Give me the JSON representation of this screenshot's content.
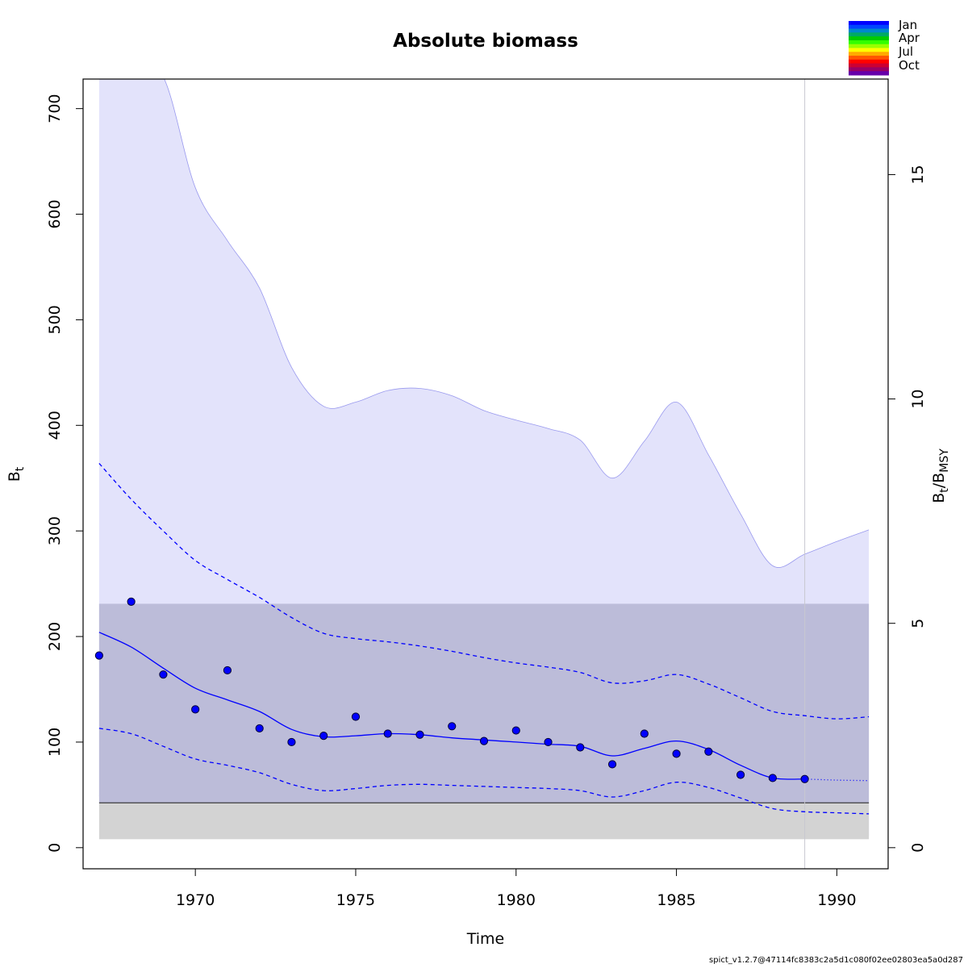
{
  "chart_data": {
    "type": "line",
    "title": "Absolute biomass",
    "xlabel": "Time",
    "ylabel_left": {
      "main": "B",
      "sub": "t"
    },
    "ylabel_right": {
      "main1": "B",
      "sub1": "t",
      "slash": "/",
      "main2": "B",
      "sub2": "MSY"
    },
    "xlim": [
      1966.5,
      1991.6
    ],
    "ylim": [
      -20,
      728
    ],
    "ylim_right_ratio": [
      0,
      16.5
    ],
    "x_ticks": [
      1970,
      1975,
      1980,
      1985,
      1990
    ],
    "y_ticks": [
      0,
      100,
      200,
      300,
      400,
      500,
      600,
      700
    ],
    "y2_ticks": [
      0,
      5,
      10,
      15
    ],
    "bmsy": 42.5,
    "bmsy_band": [
      8,
      231
    ],
    "last_obs_year": 1989,
    "estimate_line": {
      "name": "B",
      "x": [
        1967,
        1968,
        1969,
        1970,
        1971,
        1972,
        1973,
        1974,
        1975,
        1976,
        1977,
        1978,
        1979,
        1980,
        1981,
        1982,
        1983,
        1984,
        1985,
        1986,
        1987,
        1988,
        1989
      ],
      "y": [
        204,
        190,
        170,
        151,
        140,
        129,
        112,
        105,
        106,
        108,
        107,
        104,
        102,
        100,
        98,
        96,
        87,
        94,
        101,
        93,
        78,
        66,
        65
      ]
    },
    "forecast_line": {
      "x": [
        1989,
        1990,
        1991
      ],
      "y": [
        65,
        64,
        63.5
      ]
    },
    "upper_ci": {
      "x": [
        1967,
        1968,
        1969,
        1970,
        1971,
        1972,
        1973,
        1974,
        1975,
        1976,
        1977,
        1978,
        1979,
        1980,
        1981,
        1982,
        1983,
        1984,
        1985,
        1986,
        1987,
        1988,
        1989,
        1990,
        1991
      ],
      "y": [
        364,
        330,
        300,
        272,
        254,
        237,
        218,
        203,
        198,
        195,
        191,
        186,
        180,
        175,
        171,
        166,
        156,
        158,
        164,
        155,
        142,
        129,
        125,
        122,
        124
      ]
    },
    "lower_ci": {
      "x": [
        1967,
        1968,
        1969,
        1970,
        1971,
        1972,
        1973,
        1974,
        1975,
        1976,
        1977,
        1978,
        1979,
        1980,
        1981,
        1982,
        1983,
        1984,
        1985,
        1986,
        1987,
        1988,
        1989,
        1990,
        1991
      ],
      "y": [
        113,
        108,
        96,
        84,
        78,
        71,
        60,
        54,
        56,
        59,
        60,
        59,
        58,
        57,
        56,
        54,
        48,
        54,
        62,
        57,
        47,
        37,
        34,
        33,
        32
      ]
    },
    "outer_band_upper": {
      "x": [
        1967,
        1968,
        1969,
        1970,
        1971,
        1972,
        1973,
        1974,
        1975,
        1976,
        1977,
        1978,
        1979,
        1980,
        1981,
        1982,
        1983,
        1984,
        1985,
        1986,
        1987,
        1988,
        1989,
        1990,
        1991
      ],
      "y": [
        740,
        740,
        730,
        625,
        575,
        530,
        455,
        418,
        422,
        433,
        435,
        428,
        414,
        405,
        397,
        386,
        350,
        385,
        422,
        372,
        316,
        267,
        278,
        290,
        301
      ]
    },
    "outer_band_lower": {
      "x": [
        1967,
        1968,
        1969,
        1970,
        1971,
        1972,
        1973,
        1974,
        1975,
        1976,
        1977,
        1978,
        1979,
        1980,
        1981,
        1982,
        1983,
        1984,
        1985,
        1986,
        1987,
        1988,
        1989,
        1990,
        1991
      ],
      "y": [
        49,
        45,
        40,
        36,
        33,
        30,
        27,
        26,
        26,
        26,
        26,
        26,
        25,
        25,
        24,
        23,
        22,
        23,
        24,
        22,
        19,
        15,
        14,
        13,
        12
      ]
    },
    "observations": {
      "x": [
        1967,
        1968,
        1969,
        1970,
        1971,
        1972,
        1973,
        1974,
        1975,
        1976,
        1977,
        1978,
        1979,
        1980,
        1981,
        1982,
        1983,
        1984,
        1985,
        1986,
        1987,
        1988,
        1989
      ],
      "y": [
        182,
        233,
        164,
        131,
        168,
        113,
        100,
        106,
        124,
        108,
        107,
        115,
        101,
        111,
        100,
        95,
        79,
        108,
        89,
        91,
        69,
        66,
        65
      ]
    },
    "legend": {
      "placement": "top-right",
      "labels": [
        "Jan",
        "Apr",
        "Jul",
        "Oct"
      ],
      "colors": [
        "#0000ff",
        "#0044ff",
        "#0088cc",
        "#00aa66",
        "#00cc00",
        "#33ff00",
        "#99ff00",
        "#ffff00",
        "#ffaa00",
        "#ff5500",
        "#ff0000",
        "#cc0033",
        "#990066",
        "#6600aa"
      ]
    },
    "colors": {
      "estimate": "#0000ff",
      "outer_band": "#e3e3fb",
      "outer_band_edge": "#9999ee",
      "bmsy_band": "#bcbcd9",
      "bmsy_band_low": "#d3d3d3",
      "bmsy_line": "#000000",
      "obs_fill": "#0000ff",
      "vline": "#c8c8d0"
    },
    "grid": false
  },
  "footer": "spict_v1.2.7@47114fc8383c2a5d1c080f02ee02803ea5a0d287"
}
